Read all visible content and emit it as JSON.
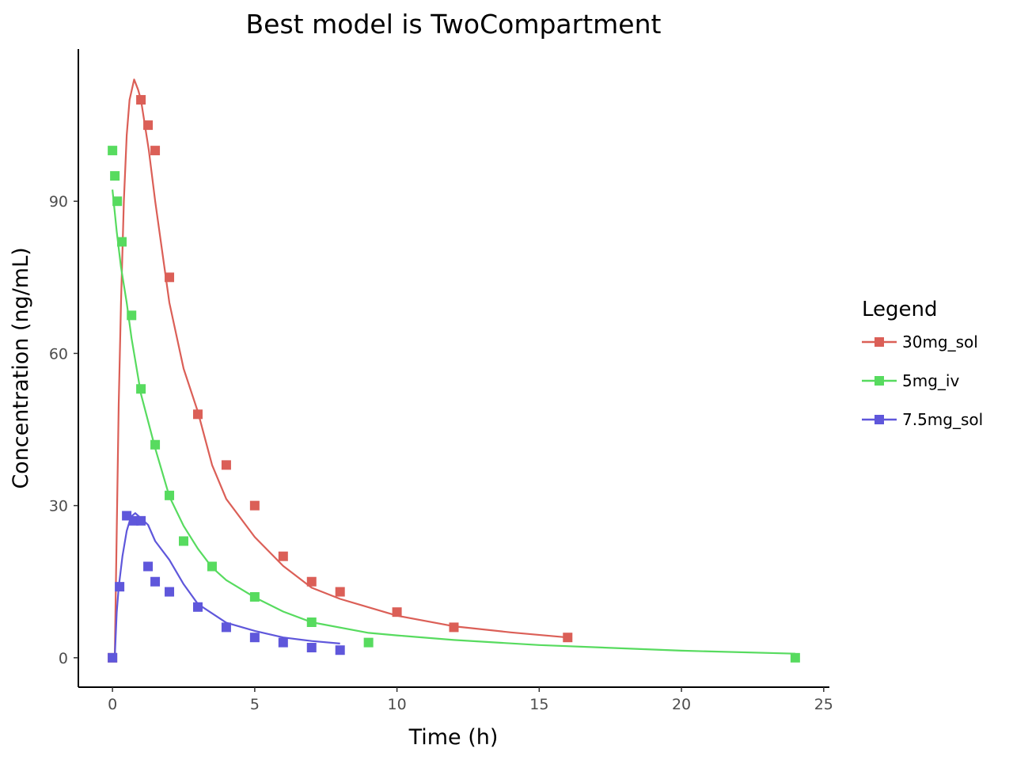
{
  "chart_data": {
    "type": "scatter",
    "title": "Best model is TwoCompartment",
    "xlabel": "Time (h)",
    "ylabel": "Concentration (ng/mL)",
    "xlim": [
      -1.2,
      25.2
    ],
    "ylim": [
      -5.8,
      120
    ],
    "xticks": [
      0,
      5,
      10,
      15,
      20,
      25
    ],
    "yticks": [
      0,
      30,
      60,
      90
    ],
    "grid": false,
    "legend": {
      "title": "Legend",
      "placement": "right"
    },
    "series": [
      {
        "name": "30mg_sol",
        "color": "#db5f57",
        "points": [
          [
            0,
            0
          ],
          [
            1,
            110
          ],
          [
            1.25,
            105
          ],
          [
            1.5,
            100
          ],
          [
            2,
            75
          ],
          [
            3,
            48
          ],
          [
            4,
            38
          ],
          [
            5,
            30
          ],
          [
            6,
            20
          ],
          [
            7,
            15
          ],
          [
            8,
            13
          ],
          [
            10,
            9
          ],
          [
            12,
            6
          ],
          [
            16,
            4
          ]
        ],
        "fit": [
          [
            0.08,
            0
          ],
          [
            0.15,
            25
          ],
          [
            0.22,
            50
          ],
          [
            0.3,
            70
          ],
          [
            0.4,
            90
          ],
          [
            0.5,
            103
          ],
          [
            0.6,
            110
          ],
          [
            0.76,
            114
          ],
          [
            0.9,
            112
          ],
          [
            1,
            110
          ],
          [
            1.28,
            100
          ],
          [
            1.5,
            90
          ],
          [
            2,
            70
          ],
          [
            2.5,
            57
          ],
          [
            3,
            48.5
          ],
          [
            3.5,
            38
          ],
          [
            4,
            31.3
          ],
          [
            5,
            23.8
          ],
          [
            6,
            18.1
          ],
          [
            7,
            13.8
          ],
          [
            8,
            11.6
          ],
          [
            10,
            8.3
          ],
          [
            12,
            6.2
          ],
          [
            14,
            5
          ],
          [
            16,
            4
          ]
        ]
      },
      {
        "name": "5mg_iv",
        "color": "#57db5f",
        "points": [
          [
            0,
            100
          ],
          [
            0.083,
            95
          ],
          [
            0.167,
            90
          ],
          [
            0.33,
            82
          ],
          [
            0.67,
            67.5
          ],
          [
            1,
            53
          ],
          [
            1.5,
            42
          ],
          [
            2,
            32
          ],
          [
            2.5,
            23
          ],
          [
            3.5,
            18
          ],
          [
            5,
            12
          ],
          [
            7,
            7
          ],
          [
            9,
            3
          ],
          [
            24,
            0
          ]
        ],
        "fit": [
          [
            0,
            92.3
          ],
          [
            0.15,
            84
          ],
          [
            0.3,
            77
          ],
          [
            0.5,
            70
          ],
          [
            0.67,
            63
          ],
          [
            1,
            52
          ],
          [
            1.5,
            41.3
          ],
          [
            2,
            31.8
          ],
          [
            2.5,
            26
          ],
          [
            3,
            21.5
          ],
          [
            3.5,
            17.8
          ],
          [
            4,
            15.3
          ],
          [
            5,
            11.9
          ],
          [
            6,
            9.1
          ],
          [
            7,
            7
          ],
          [
            9,
            4.9
          ],
          [
            10,
            4.4
          ],
          [
            12,
            3.5
          ],
          [
            15,
            2.5
          ],
          [
            20,
            1.4
          ],
          [
            24,
            0.8
          ]
        ]
      },
      {
        "name": "7.5mg_sol",
        "color": "#5f57db",
        "points": [
          [
            0,
            0
          ],
          [
            0.25,
            14
          ],
          [
            0.5,
            28
          ],
          [
            0.75,
            27
          ],
          [
            1,
            27
          ],
          [
            1.25,
            18
          ],
          [
            1.5,
            15
          ],
          [
            2,
            13
          ],
          [
            3,
            10
          ],
          [
            4,
            6
          ],
          [
            5,
            4
          ],
          [
            6,
            3
          ],
          [
            7,
            2
          ],
          [
            8,
            1.5
          ]
        ],
        "fit": [
          [
            0.08,
            0
          ],
          [
            0.15,
            9
          ],
          [
            0.22,
            13.9
          ],
          [
            0.35,
            20
          ],
          [
            0.5,
            25
          ],
          [
            0.65,
            27.8
          ],
          [
            0.8,
            28.5
          ],
          [
            1,
            27.5
          ],
          [
            1.25,
            26.2
          ],
          [
            1.5,
            23
          ],
          [
            2,
            19.3
          ],
          [
            2.5,
            14.5
          ],
          [
            3,
            10.6
          ],
          [
            4,
            6.9
          ],
          [
            5,
            5.3
          ],
          [
            6,
            4
          ],
          [
            7,
            3.3
          ],
          [
            8,
            2.8
          ]
        ]
      }
    ]
  }
}
